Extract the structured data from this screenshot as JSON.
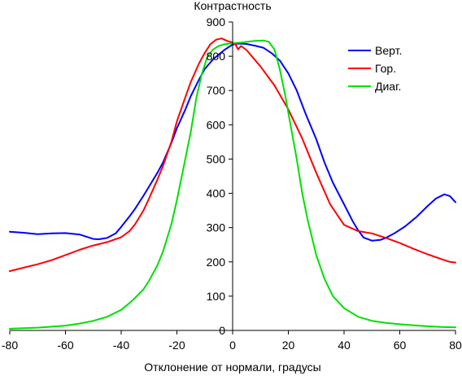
{
  "chart_data": {
    "type": "line",
    "title": "",
    "ylabel": "Контрастность",
    "xlabel": "Отклонение от нормали, градусы",
    "xlim": [
      -80,
      80
    ],
    "ylim": [
      0,
      900
    ],
    "x_ticks": [
      -80,
      -60,
      -40,
      -20,
      0,
      20,
      40,
      60,
      80
    ],
    "y_ticks": [
      0,
      100,
      200,
      300,
      400,
      500,
      600,
      700,
      800,
      900
    ],
    "grid": false,
    "legend_position": "top-right",
    "series": [
      {
        "name": "Верт.",
        "color": "#0000ff",
        "points": [
          [
            -80,
            288
          ],
          [
            -75,
            285
          ],
          [
            -70,
            281
          ],
          [
            -65,
            283
          ],
          [
            -60,
            284
          ],
          [
            -55,
            280
          ],
          [
            -50,
            267
          ],
          [
            -48,
            266
          ],
          [
            -45,
            270
          ],
          [
            -42,
            283
          ],
          [
            -40,
            302
          ],
          [
            -37,
            333
          ],
          [
            -35,
            355
          ],
          [
            -32,
            393
          ],
          [
            -30,
            420
          ],
          [
            -27,
            460
          ],
          [
            -25,
            490
          ],
          [
            -22,
            547
          ],
          [
            -20,
            590
          ],
          [
            -17,
            644
          ],
          [
            -15,
            684
          ],
          [
            -12,
            733
          ],
          [
            -10,
            763
          ],
          [
            -7,
            791
          ],
          [
            -5,
            805
          ],
          [
            -3,
            818
          ],
          [
            -1,
            829
          ],
          [
            0,
            834
          ],
          [
            2,
            837
          ],
          [
            5,
            836
          ],
          [
            8,
            831
          ],
          [
            11,
            825
          ],
          [
            14,
            809
          ],
          [
            17,
            787
          ],
          [
            20,
            750
          ],
          [
            23,
            700
          ],
          [
            26,
            636
          ],
          [
            30,
            558
          ],
          [
            33,
            490
          ],
          [
            36,
            431
          ],
          [
            40,
            368
          ],
          [
            43,
            320
          ],
          [
            45,
            293
          ],
          [
            47,
            271
          ],
          [
            50,
            262
          ],
          [
            53,
            264
          ],
          [
            55,
            270
          ],
          [
            58,
            283
          ],
          [
            62,
            304
          ],
          [
            66,
            331
          ],
          [
            70,
            363
          ],
          [
            73,
            385
          ],
          [
            76,
            397
          ],
          [
            78,
            392
          ],
          [
            80,
            374
          ]
        ]
      },
      {
        "name": "Гор.",
        "color": "#ff0000",
        "points": [
          [
            -80,
            173
          ],
          [
            -75,
            183
          ],
          [
            -70,
            193
          ],
          [
            -65,
            205
          ],
          [
            -60,
            220
          ],
          [
            -55,
            235
          ],
          [
            -50,
            248
          ],
          [
            -45,
            258
          ],
          [
            -40,
            272
          ],
          [
            -37,
            290
          ],
          [
            -35,
            310
          ],
          [
            -32,
            350
          ],
          [
            -30,
            385
          ],
          [
            -27,
            440
          ],
          [
            -25,
            480
          ],
          [
            -22,
            550
          ],
          [
            -20,
            610
          ],
          [
            -17,
            680
          ],
          [
            -15,
            725
          ],
          [
            -12,
            780
          ],
          [
            -10,
            810
          ],
          [
            -8,
            835
          ],
          [
            -6,
            848
          ],
          [
            -4,
            852
          ],
          [
            -2,
            845
          ],
          [
            0,
            840
          ],
          [
            1,
            835
          ],
          [
            2,
            820
          ],
          [
            3,
            830
          ],
          [
            5,
            818
          ],
          [
            10,
            770
          ],
          [
            15,
            715
          ],
          [
            20,
            645
          ],
          [
            25,
            560
          ],
          [
            30,
            460
          ],
          [
            35,
            368
          ],
          [
            40,
            308
          ],
          [
            45,
            290
          ],
          [
            50,
            283
          ],
          [
            55,
            270
          ],
          [
            60,
            255
          ],
          [
            65,
            238
          ],
          [
            70,
            222
          ],
          [
            75,
            208
          ],
          [
            78,
            200
          ],
          [
            80,
            198
          ]
        ]
      },
      {
        "name": "Диаг.",
        "color": "#00e000",
        "points": [
          [
            -80,
            5
          ],
          [
            -70,
            8
          ],
          [
            -60,
            14
          ],
          [
            -55,
            20
          ],
          [
            -50,
            28
          ],
          [
            -45,
            40
          ],
          [
            -40,
            60
          ],
          [
            -37,
            80
          ],
          [
            -35,
            95
          ],
          [
            -32,
            120
          ],
          [
            -30,
            145
          ],
          [
            -27,
            190
          ],
          [
            -25,
            230
          ],
          [
            -22,
            310
          ],
          [
            -20,
            380
          ],
          [
            -17,
            500
          ],
          [
            -15,
            580
          ],
          [
            -13,
            680
          ],
          [
            -11,
            750
          ],
          [
            -9,
            800
          ],
          [
            -7,
            820
          ],
          [
            -5,
            830
          ],
          [
            -3,
            835
          ],
          [
            0,
            838
          ],
          [
            3,
            840
          ],
          [
            6,
            843
          ],
          [
            8,
            845
          ],
          [
            11,
            846
          ],
          [
            13,
            842
          ],
          [
            15,
            820
          ],
          [
            17,
            760
          ],
          [
            19,
            680
          ],
          [
            21,
            590
          ],
          [
            23,
            500
          ],
          [
            25,
            400
          ],
          [
            27,
            320
          ],
          [
            30,
            220
          ],
          [
            33,
            150
          ],
          [
            36,
            100
          ],
          [
            40,
            65
          ],
          [
            45,
            40
          ],
          [
            50,
            28
          ],
          [
            55,
            22
          ],
          [
            60,
            18
          ],
          [
            65,
            15
          ],
          [
            70,
            12
          ],
          [
            75,
            10
          ],
          [
            80,
            9
          ]
        ]
      }
    ]
  }
}
